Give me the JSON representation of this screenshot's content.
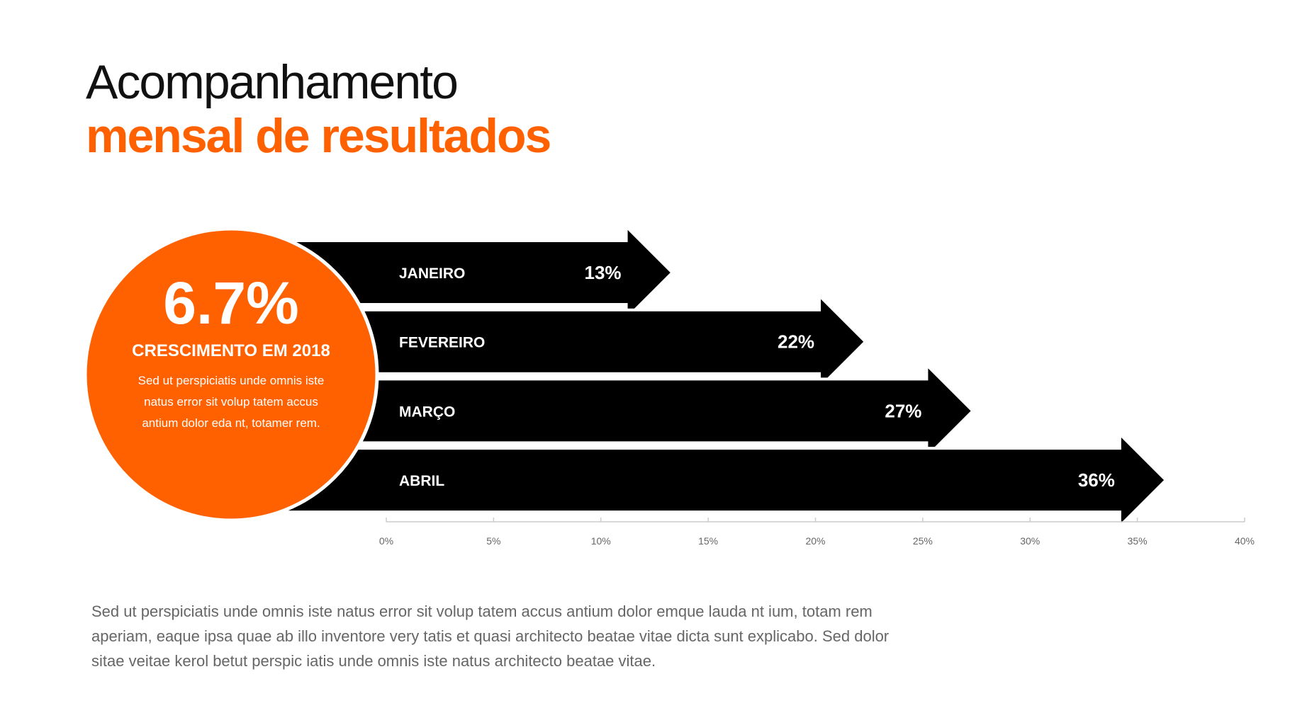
{
  "title": {
    "line1": "Acompanhamento",
    "line2": "mensal de resultados"
  },
  "highlight": {
    "value": "6.7%",
    "label": "CRESCIMENTO EM 2018",
    "description": "Sed ut perspiciatis unde omnis iste natus error sit volup tatem accus antium dolor eda nt, totamer rem."
  },
  "body_text": "Sed ut perspiciatis unde omnis iste natus error sit volup tatem accus antium dolor emque lauda nt ium, totam rem aperiam, eaque ipsa quae ab illo inventore very tatis et quasi architecto beatae vitae dicta sunt explicabo.  Sed dolor sitae veitae kerol betut perspic iatis unde omnis iste natus architecto beatae vitae.",
  "colors": {
    "accent": "#ff6100",
    "bar": "#000000",
    "text": "#111111",
    "muted": "#666666"
  },
  "chart_data": {
    "type": "bar",
    "orientation": "horizontal",
    "categories": [
      "JANEIRO",
      "FEVEREIRO",
      "MARÇO",
      "ABRIL"
    ],
    "values": [
      13,
      22,
      27,
      36
    ],
    "value_labels": [
      "13%",
      "22%",
      "27%",
      "36%"
    ],
    "xlim": [
      0,
      40
    ],
    "ticks": [
      0,
      5,
      10,
      15,
      20,
      25,
      30,
      35,
      40
    ],
    "tick_labels": [
      "0%",
      "5%",
      "10%",
      "15%",
      "20%",
      "25%",
      "30%",
      "35%",
      "40%"
    ],
    "title": "",
    "xlabel": "",
    "ylabel": ""
  }
}
